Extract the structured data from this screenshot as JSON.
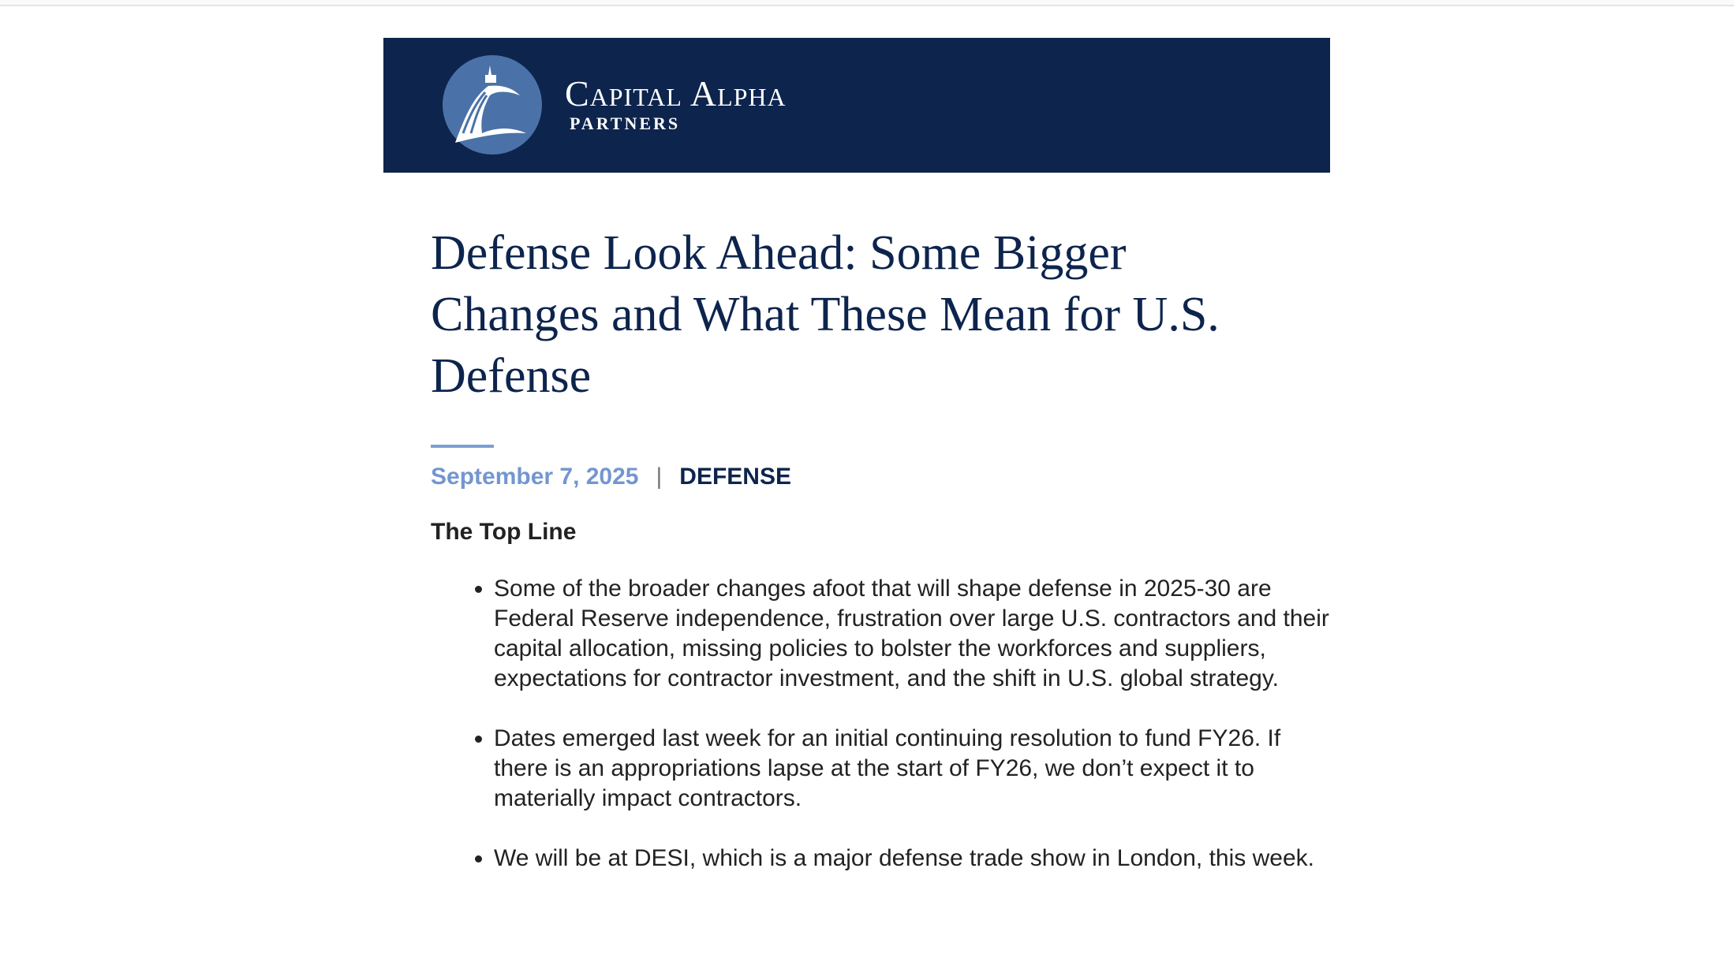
{
  "brand": {
    "name": "Capital Alpha",
    "sub": "PARTNERS",
    "colors": {
      "navy": "#0d244d",
      "logo_blue": "#4a72a8",
      "accent": "#7396d0"
    }
  },
  "article": {
    "title": "Defense Look Ahead: Some Bigger Changes and What These Mean for U.S. Defense",
    "date": "September 7, 2025",
    "separator": "|",
    "category": "DEFENSE",
    "section_heading": "The Top Line",
    "bullets": [
      "Some of the broader changes afoot that will shape defense in 2025-30 are Federal Reserve independence, frustration over large U.S. contractors and their capital allocation, missing policies to bolster the workforces and suppliers, expectations for contractor investment, and the shift in U.S. global strategy.",
      "Dates emerged last week for an initial continuing resolution to fund FY26. If there is an appropriations lapse at the start of FY26, we don’t expect it to materially impact contractors.",
      "We will be at DESI, which is a major defense trade show in London, this week."
    ]
  }
}
